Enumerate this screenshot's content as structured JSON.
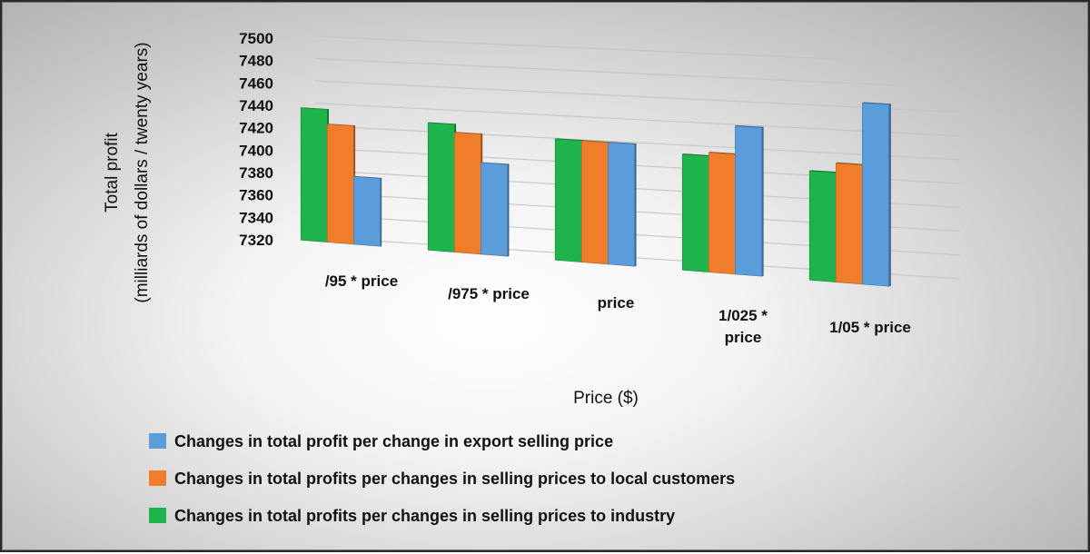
{
  "chart_data": {
    "type": "bar",
    "categories": [
      "/95 * price",
      "/975 * price",
      "price",
      "1/025 * price",
      "1/05 * price"
    ],
    "category_lines": [
      [
        "/95 * price"
      ],
      [
        "/975 * price"
      ],
      [
        "price"
      ],
      [
        "1/025 *",
        "price"
      ],
      [
        "1/05 * price"
      ]
    ],
    "series": [
      {
        "name": "Changes in total profits per changes in selling prices to industry",
        "color": "#1fb44b",
        "values": [
          7438,
          7432,
          7425,
          7419,
          7412
        ]
      },
      {
        "name": "Changes in total profits per changes in selling prices to local customers",
        "color": "#ef7d2c",
        "values": [
          7425,
          7425,
          7425,
          7422,
          7420
        ]
      },
      {
        "name": "Changes in total profit per change in export selling price",
        "color": "#5b9ddb",
        "values": [
          7380,
          7400,
          7425,
          7446,
          7472
        ]
      }
    ],
    "legend_order": [
      2,
      1,
      0
    ],
    "xlabel": "Price ($)",
    "ylabel": [
      "Total profit",
      "(milliards of dollars / twenty years)"
    ],
    "ylim": [
      7320,
      7500
    ],
    "yticks": [
      7320,
      7340,
      7360,
      7380,
      7400,
      7420,
      7440,
      7460,
      7480,
      7500
    ],
    "grid": true,
    "legend_position": "bottom",
    "projection": "3d-perspective"
  }
}
